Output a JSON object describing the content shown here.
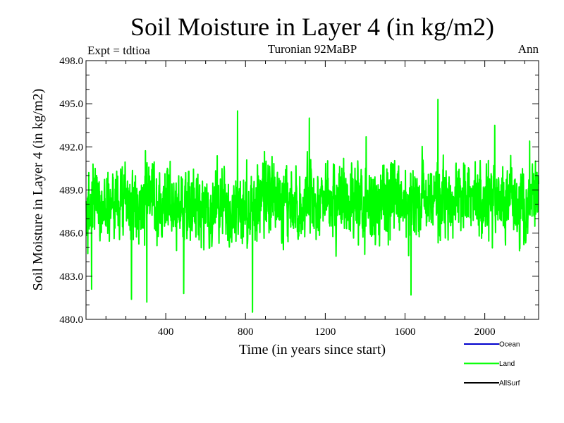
{
  "chart_data": {
    "type": "line",
    "title": "Soil Moisture in Layer 4 (in kg/m2)",
    "experiment": "Expt = tdtioa",
    "subtitle": "Turonian  92MaBP",
    "season": "Ann",
    "xlabel": "Time (in years since start)",
    "ylabel": "Soil Moisture in Layer 4 (in kg/m2)",
    "xlim": [
      0,
      2270
    ],
    "ylim": [
      480.0,
      498.0
    ],
    "x_ticks": [
      400,
      800,
      1200,
      1600,
      2000
    ],
    "x_tick_labels": [
      "400",
      "800",
      "1200",
      "1600",
      "2000"
    ],
    "y_ticks": [
      480.0,
      483.0,
      486.0,
      489.0,
      492.0,
      495.0,
      498.0
    ],
    "y_tick_labels": [
      "480.0",
      "483.0",
      "486.0",
      "489.0",
      "492.0",
      "495.0",
      "498.0"
    ],
    "anchor_step": 50,
    "series": [
      {
        "name": "Ocean",
        "color": "#0000cc",
        "values": []
      },
      {
        "name": "Land",
        "color": "#00ff00",
        "x_start": 1,
        "x_end": 2270,
        "anchors": [
          487.0,
          488.5,
          487.8,
          488.3,
          488.0,
          487.5,
          488.2,
          487.9,
          488.4,
          487.6,
          488.1,
          487.7,
          488.0,
          487.4,
          488.3,
          487.5,
          488.1,
          487.9,
          488.6,
          488.2,
          488.4,
          487.8,
          488.0,
          487.7,
          488.5,
          488.1,
          487.9,
          488.3,
          488.0,
          487.8,
          488.2,
          488.4,
          487.9,
          488.1,
          488.6,
          488.3,
          487.8,
          488.1,
          488.7,
          488.5,
          488.0,
          488.2,
          488.4,
          488.1,
          487.9,
          488.3,
          488.0
        ],
        "amplitude": 2.4,
        "peaks": [
          [
            760,
            494.5
          ],
          [
            1765,
            495.3
          ],
          [
            1120,
            494.0
          ],
          [
            2050,
            493.5
          ],
          [
            2225,
            492.4
          ],
          [
            1405,
            492.7
          ]
        ],
        "troughs": [
          [
            835,
            480.5
          ],
          [
            1630,
            481.7
          ],
          [
            228,
            481.4
          ],
          [
            305,
            481.2
          ],
          [
            28,
            482.1
          ],
          [
            490,
            481.8
          ]
        ]
      },
      {
        "name": "AllSurf",
        "color": "#000000",
        "values": []
      }
    ],
    "legend": [
      "Ocean",
      "Land",
      "AllSurf"
    ],
    "legend_position": "bottom-right"
  }
}
